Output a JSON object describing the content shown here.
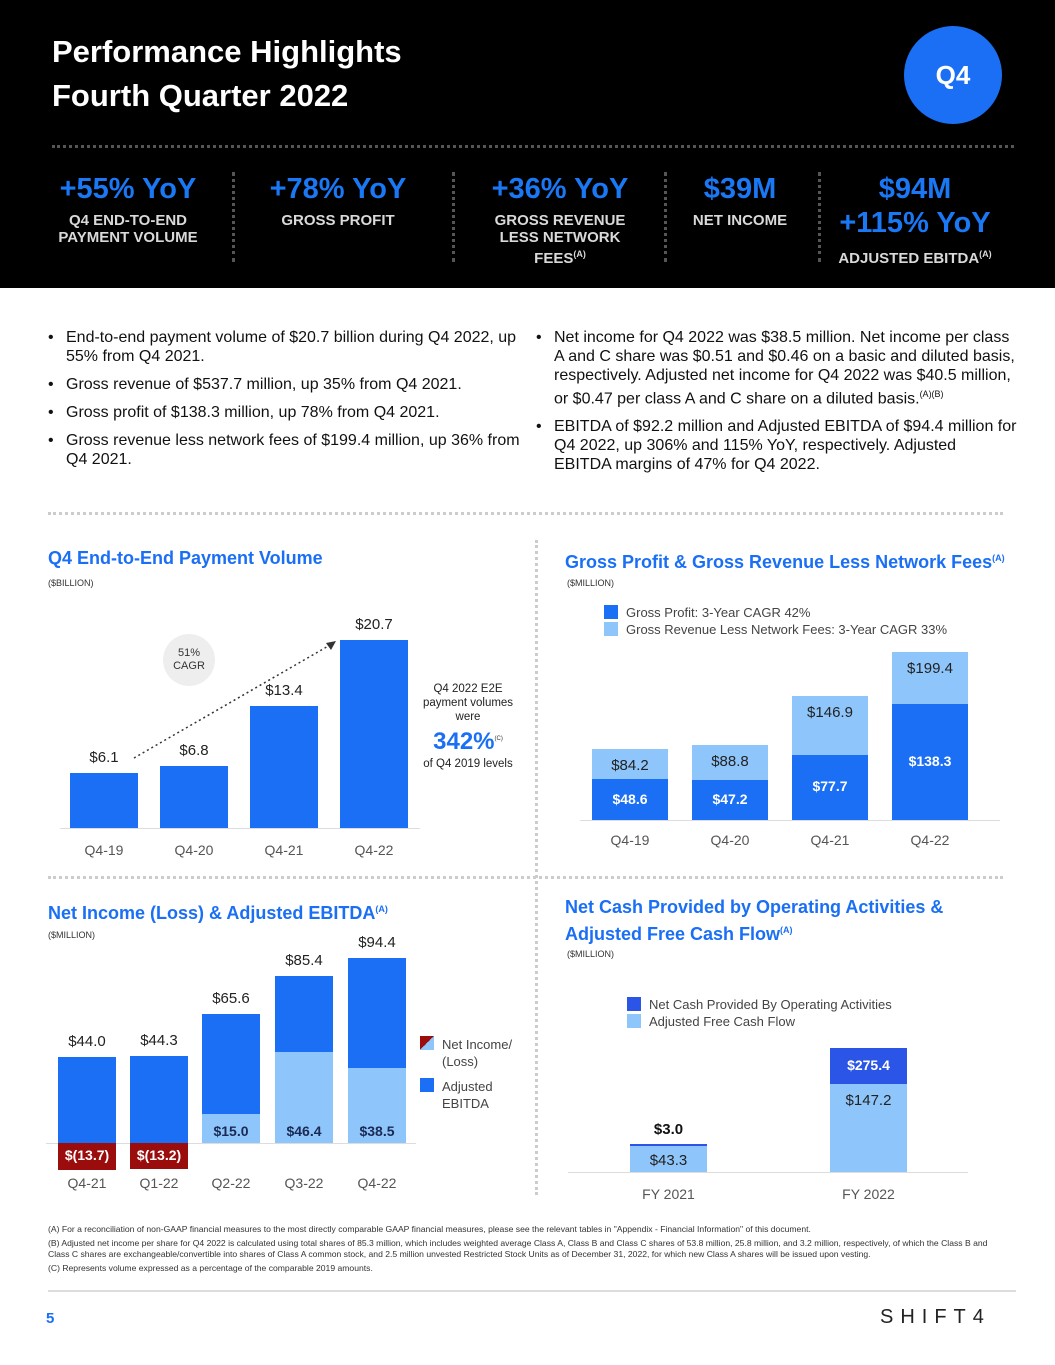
{
  "header": {
    "title_line1": "Performance Highlights",
    "title_line2": "Fourth Quarter 2022",
    "badge": "Q4"
  },
  "kpis": [
    {
      "value": "+55% YoY",
      "label": "Q4 END-TO-END PAYMENT VOLUME"
    },
    {
      "value": "+78% YoY",
      "label": "GROSS PROFIT"
    },
    {
      "value": "+36% YoY",
      "label": "GROSS REVENUE LESS NETWORK FEES",
      "sup": "(A)"
    },
    {
      "value": "$39M",
      "label": "NET INCOME"
    },
    {
      "value": "$94M",
      "value2": "+115% YoY",
      "label": "ADJUSTED EBITDA",
      "sup": "(A)"
    }
  ],
  "bullets_left": [
    "End-to-end payment volume of $20.7 billion during Q4 2022, up 55% from Q4 2021.",
    "Gross revenue of $537.7 million, up 35% from Q4 2021.",
    "Gross profit of $138.3 million, up 78% from Q4 2021.",
    "Gross revenue less network fees of $199.4 million, up 36% from Q4 2021."
  ],
  "bullets_right": [
    "Net income for Q4 2022 was $38.5 million. Net income per class A and C share was $0.51 and $0.46 on a basic and diluted basis, respectively. Adjusted net income for Q4 2022 was $40.5 million, or $0.47 per class A and C share on a diluted basis.",
    "EBITDA of $92.2 million and Adjusted EBITDA of $94.4 million for Q4 2022, up 306% and 115% YoY, respectively. Adjusted EBITDA margins of 47% for Q4 2022."
  ],
  "bullet_right_sup": "(A)(B)",
  "callout": {
    "line1": "Q4 2022 E2E payment volumes were",
    "value": "342%",
    "sup": "(C)",
    "line2": "of Q4 2019 levels",
    "cagr": "51% CAGR"
  },
  "colors": {
    "blue": "#1a6ff5",
    "light_blue": "#8ec5fb",
    "dark_red": "#9b0d0d",
    "black": "#000000"
  },
  "chart_data": [
    {
      "type": "bar",
      "title": "Q4 End-to-End Payment Volume",
      "unit": "($BILLION)",
      "categories": [
        "Q4-19",
        "Q4-20",
        "Q4-21",
        "Q4-22"
      ],
      "values": [
        6.1,
        6.8,
        13.4,
        20.7
      ],
      "labels": [
        "$6.1",
        "$6.8",
        "$13.4",
        "$20.7"
      ]
    },
    {
      "type": "bar",
      "title": "Gross Profit & Gross Revenue Less Network Fees",
      "title_sup": "(A)",
      "unit": "($MILLION)",
      "categories": [
        "Q4-19",
        "Q4-20",
        "Q4-21",
        "Q4-22"
      ],
      "legend": "top-left",
      "series": [
        {
          "name": "Gross Profit: 3-Year CAGR 42%",
          "values": [
            48.6,
            47.2,
            77.7,
            138.3
          ],
          "labels": [
            "$48.6",
            "$47.2",
            "$77.7",
            "$138.3"
          ]
        },
        {
          "name": "Gross Revenue Less Network Fees: 3-Year CAGR 33%",
          "values": [
            84.2,
            88.8,
            146.9,
            199.4
          ],
          "labels": [
            "$84.2",
            "$88.8",
            "$146.9",
            "$199.4"
          ]
        }
      ]
    },
    {
      "type": "bar",
      "title": "Net Income (Loss) & Adjusted EBITDA",
      "title_sup": "(A)",
      "unit": "($MILLION)",
      "categories": [
        "Q4-21",
        "Q1-22",
        "Q2-22",
        "Q3-22",
        "Q4-22"
      ],
      "legend": "right",
      "series": [
        {
          "name": "Net Income/ (Loss)",
          "values": [
            -13.7,
            -13.2,
            15.0,
            46.4,
            38.5
          ],
          "labels": [
            "$(13.7)",
            "$(13.2)",
            "$15.0",
            "$46.4",
            "$38.5"
          ]
        },
        {
          "name": "Adjusted EBITDA",
          "values": [
            44.0,
            44.3,
            65.6,
            85.4,
            94.4
          ],
          "labels": [
            "$44.0",
            "$44.3",
            "$65.6",
            "$85.4",
            "$94.4"
          ]
        }
      ]
    },
    {
      "type": "bar",
      "title": "Net Cash Provided by Operating Activities & Adjusted Free Cash Flow",
      "title_sup": "(A)",
      "unit": "($MILLION)",
      "categories": [
        "FY 2021",
        "FY 2022"
      ],
      "legend": "top-left",
      "series": [
        {
          "name": "Net Cash Provided By Operating Activities",
          "values": [
            3.0,
            275.4
          ],
          "labels": [
            "$3.0",
            "$275.4"
          ]
        },
        {
          "name": "Adjusted Free Cash Flow",
          "values": [
            43.3,
            147.2
          ],
          "labels": [
            "$43.3",
            "$147.2"
          ]
        }
      ]
    }
  ],
  "footnotes": [
    "(A) For a reconciliation of non-GAAP financial measures to the most directly comparable GAAP financial measures, please see the relevant tables in \"Appendix - Financial Information\" of this document.",
    "(B) Adjusted net income per share for Q4 2022 is calculated using total shares of 85.3 million, which includes weighted average Class A, Class B and Class C shares of 53.8 million, 25.8 million, and 3.2 million, respectively, of which the Class B and Class C shares are exchangeable/convertible into shares of Class A common stock, and 2.5 million unvested Restricted Stock Units as of December 31, 2022, for which new Class A shares will be issued upon vesting.",
    "(C) Represents volume expressed as a percentage of the comparable 2019 amounts."
  ],
  "page_number": "5",
  "logo": "SHIFT4"
}
